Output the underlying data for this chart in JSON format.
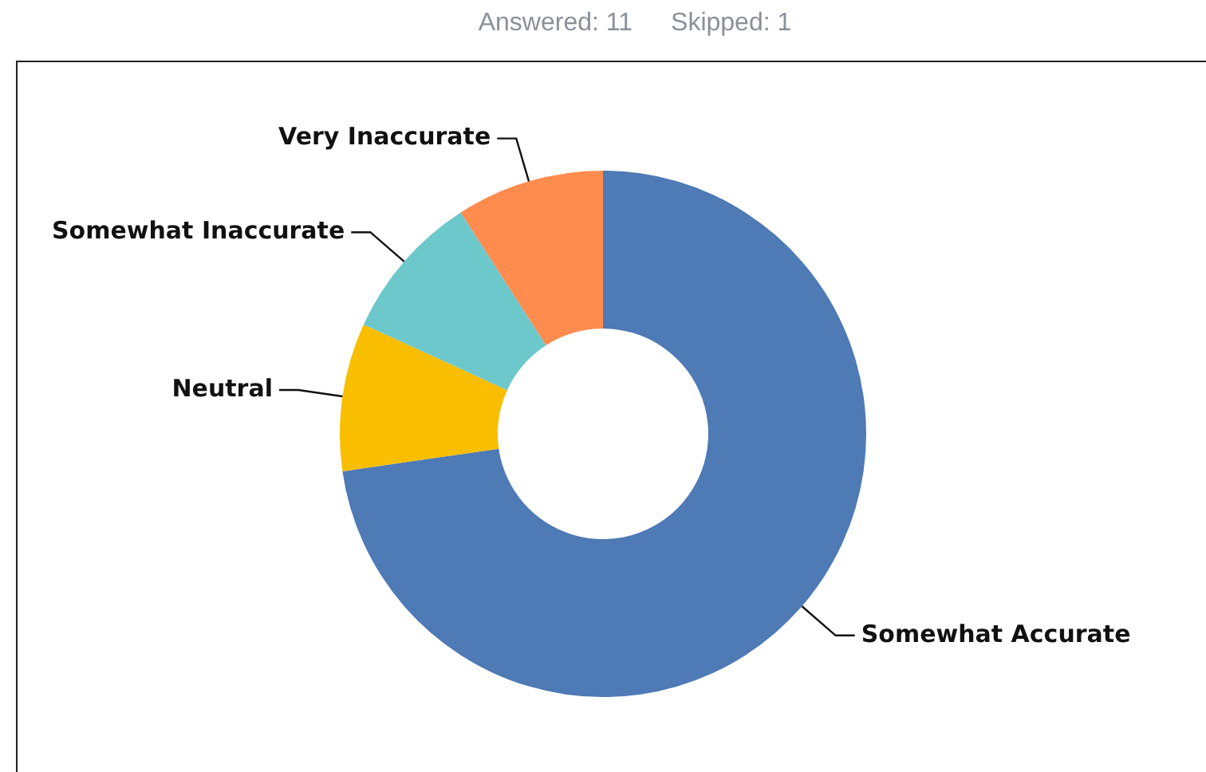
{
  "chart_data": {
    "type": "donut",
    "title": "Answered: 11",
    "subtitle": "Skipped: 1",
    "categories": [
      "Somewhat Accurate",
      "Neutral",
      "Somewhat Inaccurate",
      "Very Inaccurate"
    ],
    "values": [
      72.73,
      9.09,
      9.09,
      9.09
    ],
    "colors": [
      "#4e7ab5",
      "#f9be00",
      "#6dc8cb",
      "#fd8c4e"
    ],
    "legend": false
  }
}
